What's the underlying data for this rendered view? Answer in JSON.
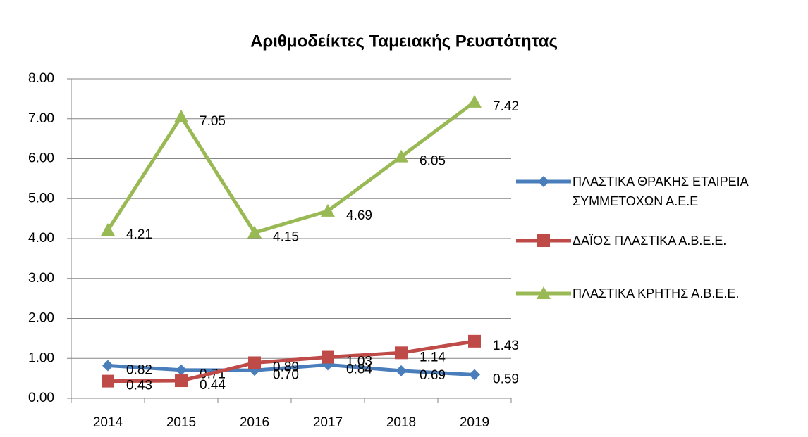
{
  "chart_data": {
    "type": "line",
    "title": "Αριθμοδείκτες Ταμειακής Ρευστότητας",
    "categories": [
      "2014",
      "2015",
      "2016",
      "2017",
      "2018",
      "2019"
    ],
    "series": [
      {
        "name": "ΠΛΑΣΤΙΚΑ ΘΡΑΚΗΣ ΕΤΑΙΡΕΙΑ ΣΥΜΜΕΤΟΧΩΝ Α.Ε.Ε",
        "color": "#4a7ebb",
        "marker": "diamond",
        "values": [
          0.82,
          0.71,
          0.7,
          0.84,
          0.69,
          0.59
        ],
        "value_labels": [
          "0.82",
          "0.71",
          "0.70",
          "0.84",
          "0.69",
          "0.59"
        ]
      },
      {
        "name": "ΔΑΪΟΣ ΠΛΑΣΤΙΚΑ Α.Β.Ε.Ε.",
        "color": "#be4b48",
        "marker": "square",
        "values": [
          0.43,
          0.44,
          0.89,
          1.03,
          1.14,
          1.43
        ],
        "value_labels": [
          "0.43",
          "0.44",
          "0.89",
          "1.03",
          "1.14",
          "1.43"
        ]
      },
      {
        "name": "ΠΛΑΣΤΙΚΑ ΚΡΗΤΗΣ Α.Β.Ε.Ε.",
        "color": "#98b954",
        "marker": "triangle",
        "values": [
          4.21,
          7.05,
          4.15,
          4.69,
          6.05,
          7.42
        ],
        "value_labels": [
          "4.21",
          "7.05",
          "4.15",
          "4.69",
          "6.05",
          "7.42"
        ]
      }
    ],
    "ylim": [
      0,
      8
    ],
    "yticks": [
      {
        "value": 0,
        "label": "0.00"
      },
      {
        "value": 1,
        "label": "1.00"
      },
      {
        "value": 2,
        "label": "2.00"
      },
      {
        "value": 3,
        "label": "3.00"
      },
      {
        "value": 4,
        "label": "4.00"
      },
      {
        "value": 5,
        "label": "5.00"
      },
      {
        "value": 6,
        "label": "6.00"
      },
      {
        "value": 7,
        "label": "7.00"
      },
      {
        "value": 8,
        "label": "8.00"
      }
    ],
    "grid": true,
    "legend": "right"
  }
}
